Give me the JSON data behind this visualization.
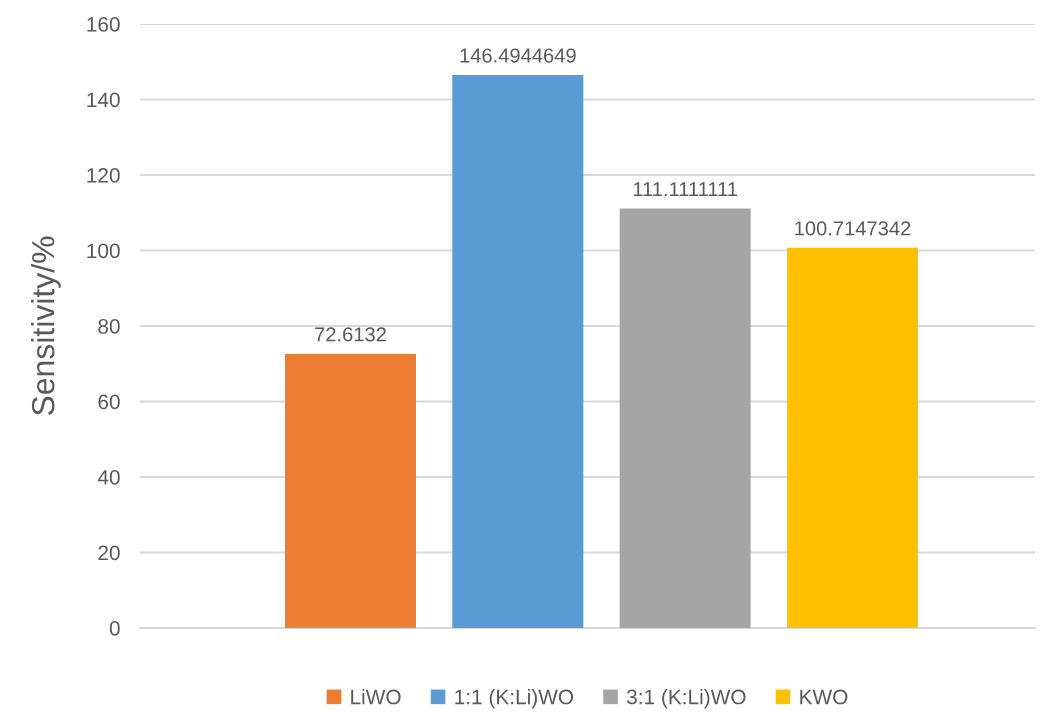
{
  "chart_data": {
    "type": "bar",
    "ylabel": "Sensitivity/%",
    "categories": [
      null
    ],
    "series": [
      {
        "name": "LiWO",
        "color": "#ed7d31",
        "values": [
          72.6132
        ]
      },
      {
        "name": "1:1 (K:Li)WO",
        "color": "#5b9bd5",
        "values": [
          146.4944649
        ]
      },
      {
        "name": "3:1 (K:Li)WO",
        "color": "#a5a5a5",
        "values": [
          111.1111111
        ]
      },
      {
        "name": "KWO",
        "color": "#ffc000",
        "values": [
          100.7147342
        ]
      }
    ],
    "ylim": [
      0,
      160
    ],
    "yticks": [
      0,
      20,
      40,
      60,
      80,
      100,
      120,
      140,
      160
    ],
    "grid": "y",
    "legend": "bottom",
    "data_labels": true
  }
}
